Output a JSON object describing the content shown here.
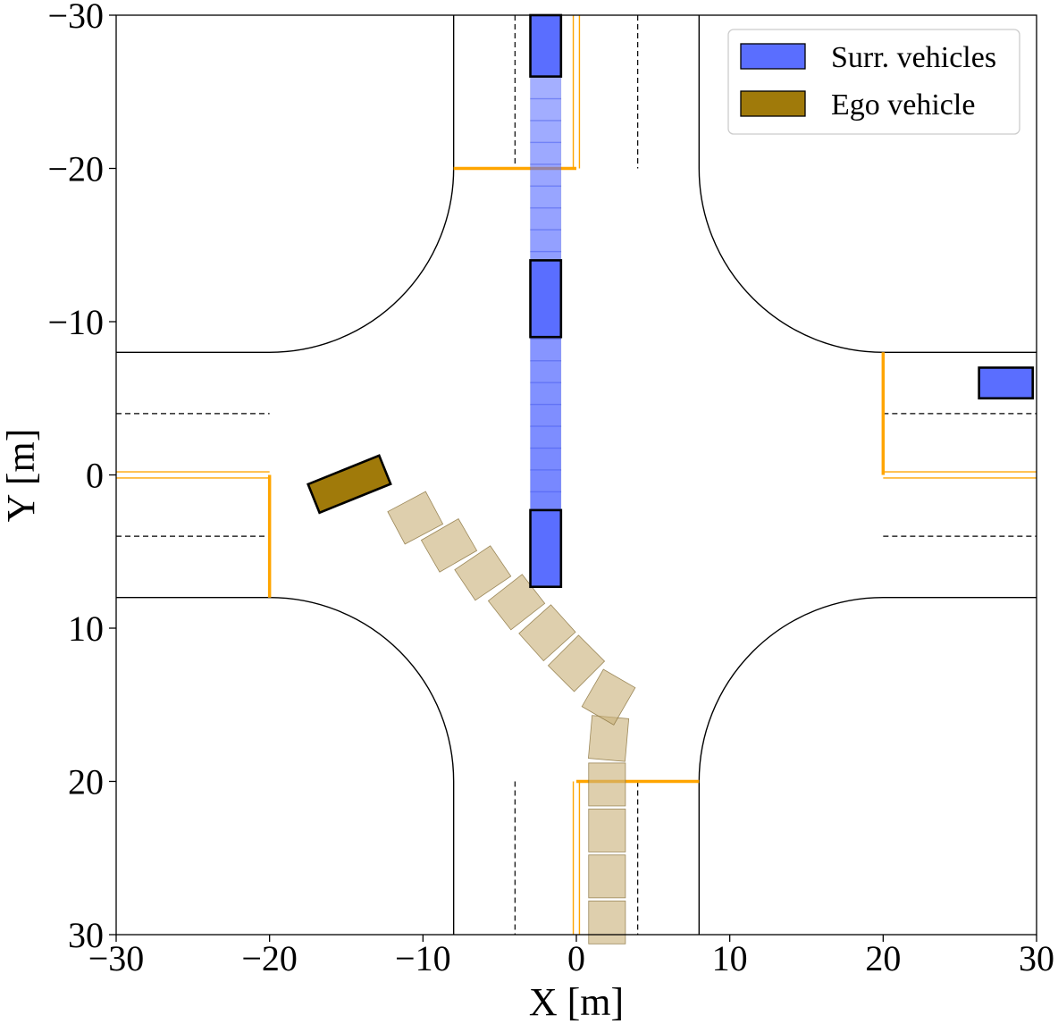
{
  "chart_data": {
    "type": "scatter",
    "xlabel": "X [m]",
    "ylabel": "Y [m]",
    "xlim": [
      -30,
      30
    ],
    "ylim": [
      -30,
      30
    ],
    "y_inverted": true,
    "xticks": [
      "−30",
      "−20",
      "−10",
      "0",
      "10",
      "20",
      "30"
    ],
    "yticks": [
      "−30",
      "−20",
      "−10",
      "0",
      "10",
      "20",
      "30"
    ],
    "legend": {
      "position": "top-right",
      "entries": [
        {
          "name": "Surr. vehicles",
          "color": "#5a6eff"
        },
        {
          "name": "Ego vehicle",
          "color": "#a07a0a"
        }
      ]
    },
    "road": {
      "half_width": 8,
      "corner_radius": 12,
      "lane_divider_offset": 4,
      "stop_lines": [
        {
          "x": [
            -8,
            0
          ],
          "y": -20
        },
        {
          "x": [
            0,
            8
          ],
          "y": 20
        },
        {
          "x": -20,
          "y": [
            0,
            8
          ]
        },
        {
          "x": 20,
          "y": [
            -8,
            0
          ]
        }
      ]
    },
    "surrounding_vehicles": [
      {
        "x": -2,
        "y": -28,
        "length": 4,
        "width": 2,
        "heading_deg": 90
      },
      {
        "x": -2,
        "y": -11.5,
        "length": 5,
        "width": 2,
        "heading_deg": 90
      },
      {
        "x": -2,
        "y": 4.8,
        "length": 5,
        "width": 2,
        "heading_deg": 90
      },
      {
        "x": 28,
        "y": -6,
        "length": 3.5,
        "width": 2,
        "heading_deg": 0
      }
    ],
    "surrounding_trail": {
      "x": -2,
      "y_from": -26,
      "y_to": 2.5,
      "width": 2
    },
    "ego_vehicle": {
      "x": -14.8,
      "y": 0.6,
      "length": 5,
      "width": 2,
      "heading_deg": -22
    },
    "ego_trajectory": [
      {
        "x": 2,
        "y": 29.2,
        "h": 90
      },
      {
        "x": 2,
        "y": 26.2,
        "h": 90
      },
      {
        "x": 2,
        "y": 23.2,
        "h": 90
      },
      {
        "x": 2,
        "y": 20.2,
        "h": 90
      },
      {
        "x": 2.1,
        "y": 17.2,
        "h": 95
      },
      {
        "x": 2.1,
        "y": 14.5,
        "h": 120
      },
      {
        "x": 0.0,
        "y": 12.3,
        "h": 135
      },
      {
        "x": -1.9,
        "y": 10.3,
        "h": 138
      },
      {
        "x": -3.9,
        "y": 8.3,
        "h": 142
      },
      {
        "x": -6.1,
        "y": 6.4,
        "h": 146
      },
      {
        "x": -8.3,
        "y": 4.6,
        "h": 150
      },
      {
        "x": -10.5,
        "y": 2.8,
        "h": 152
      }
    ]
  }
}
